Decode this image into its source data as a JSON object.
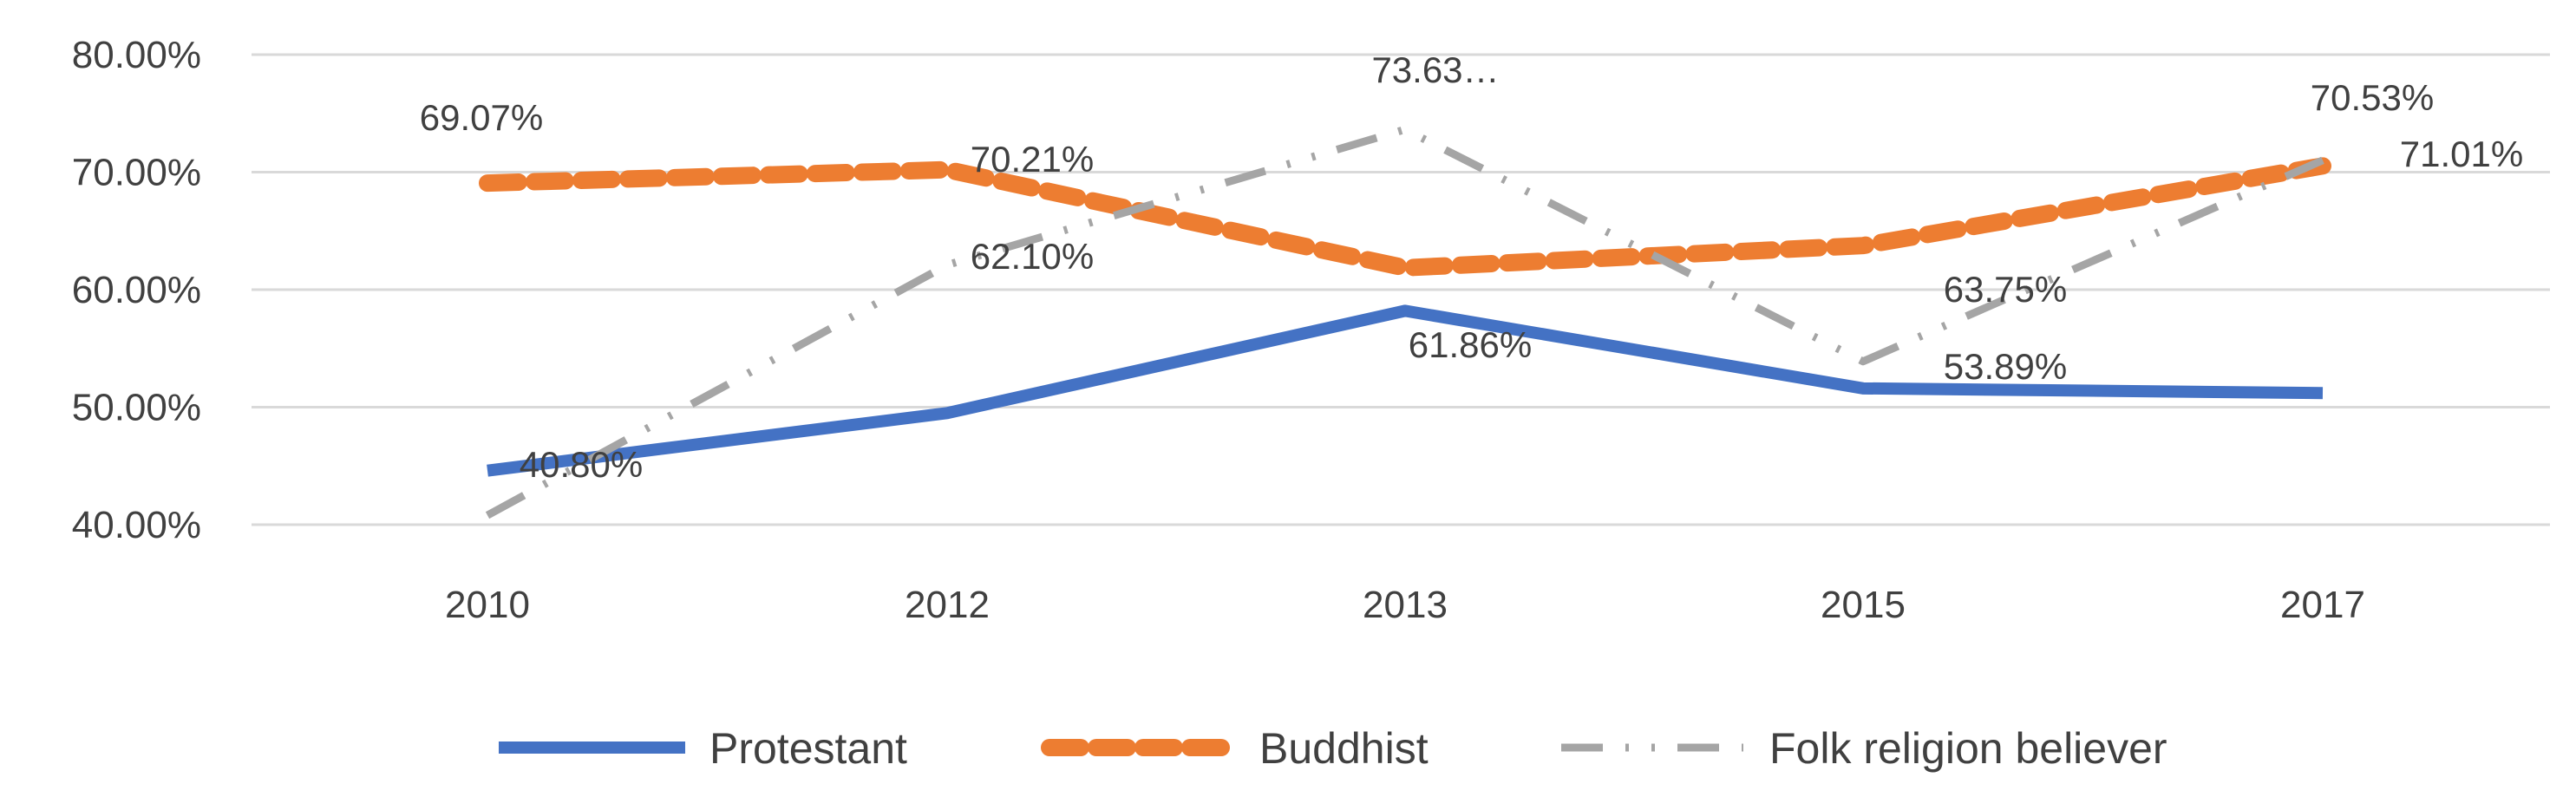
{
  "chart_data": {
    "type": "line",
    "categories": [
      "2010",
      "2012",
      "2013",
      "2015",
      "2017"
    ],
    "ylim": [
      40,
      80
    ],
    "yticks": [
      "40.00%",
      "50.00%",
      "60.00%",
      "70.00%",
      "80.00%"
    ],
    "grid": true,
    "legend_position": "bottom",
    "series": [
      {
        "name": "Protestant",
        "values": [
          44.6,
          49.5,
          58.2,
          51.6,
          51.2
        ],
        "color": "#4472C4",
        "dash": "solid",
        "labels": [
          "",
          "",
          "",
          "",
          ""
        ]
      },
      {
        "name": "Buddhist",
        "values": [
          69.07,
          70.21,
          61.86,
          63.75,
          70.53
        ],
        "color": "#ED7D31",
        "dash": "dashed",
        "labels": [
          "69.07%",
          "70.21%",
          "61.86%",
          "63.75%",
          "70.53%"
        ]
      },
      {
        "name": "Folk religion believer",
        "values": [
          40.8,
          62.1,
          73.63,
          53.89,
          71.01
        ],
        "color": "#A5A5A5",
        "dash": "long-dash-dot-dot",
        "labels": [
          "40.80%",
          "62.10%",
          "73.63…",
          "53.89%",
          "71.01%"
        ]
      }
    ]
  }
}
